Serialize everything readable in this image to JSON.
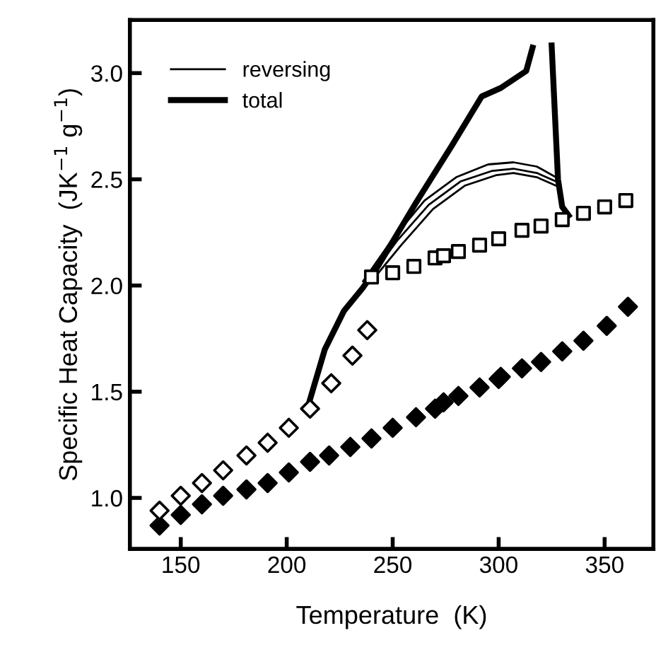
{
  "chart_data": {
    "type": "line",
    "xlabel": "Temperature  (K)",
    "ylabel": "Specific Heat Capacity  (JK$^{−1}$ g$^{−1}$)",
    "xlim": [
      126,
      373
    ],
    "ylim": [
      0.76,
      3.25
    ],
    "xticks": [
      150,
      200,
      250,
      300,
      350
    ],
    "yticks": [
      {
        "value": 1.0,
        "label": "1.0"
      },
      {
        "value": 1.5,
        "label": "1.5"
      },
      {
        "value": 2.0,
        "label": "2.0"
      },
      {
        "value": 2.5,
        "label": "2.5"
      },
      {
        "value": 3.0,
        "label": "3.0"
      }
    ],
    "legend": "top left",
    "series": [
      {
        "type": "scatter",
        "marker": "diamond",
        "color": "#000000",
        "x": [
          140,
          150,
          160,
          170,
          181,
          191,
          201,
          211,
          220,
          230,
          240,
          250,
          261,
          270,
          274,
          281,
          291,
          300,
          301,
          311,
          320,
          330,
          340,
          351,
          361
        ],
        "values": [
          0.87,
          0.92,
          0.97,
          1.01,
          1.04,
          1.07,
          1.12,
          1.17,
          1.2,
          1.24,
          1.28,
          1.33,
          1.38,
          1.42,
          1.45,
          1.48,
          1.52,
          1.56,
          1.57,
          1.61,
          1.64,
          1.69,
          1.74,
          1.81,
          1.9
        ]
      },
      {
        "type": "scatter",
        "marker": "diamond",
        "color": "#000000",
        "x": [
          140,
          150,
          160,
          170,
          181,
          191,
          201,
          211,
          221,
          231,
          238
        ],
        "values": [
          0.94,
          1.01,
          1.07,
          1.13,
          1.2,
          1.26,
          1.33,
          1.42,
          1.54,
          1.67,
          1.79
        ]
      },
      {
        "name": "reversing",
        "color": "#000000",
        "x": [
          236,
          250,
          265,
          280,
          295,
          307,
          318,
          327
        ],
        "values": [
          2.02,
          2.22,
          2.4,
          2.51,
          2.57,
          2.58,
          2.56,
          2.51
        ]
      },
      {
        "color": "#000000",
        "x": [
          238,
          252,
          267,
          282,
          297,
          307,
          318,
          327
        ],
        "values": [
          2.02,
          2.21,
          2.38,
          2.49,
          2.54,
          2.55,
          2.53,
          2.49
        ]
      },
      {
        "color": "#000000",
        "x": [
          240,
          254,
          269,
          284,
          299,
          307,
          318,
          327
        ],
        "values": [
          2.02,
          2.19,
          2.36,
          2.47,
          2.52,
          2.53,
          2.51,
          2.47
        ]
      },
      {
        "name": "total",
        "color": "#000000",
        "x": [
          210,
          218,
          227,
          236,
          243,
          261,
          278,
          292,
          301,
          307,
          313,
          316,
          320,
          325,
          328,
          330,
          333
        ],
        "values": [
          1.43,
          1.7,
          1.88,
          1.99,
          2.09,
          2.39,
          2.66,
          2.89,
          2.93,
          2.97,
          3.01,
          3.12,
          null,
          3.13,
          2.5,
          2.37,
          2.33
        ]
      },
      {
        "type": "scatter",
        "marker": "square",
        "color": "#000000",
        "x": [
          240,
          250,
          260,
          270,
          274,
          281,
          291,
          300,
          311,
          320,
          330,
          340,
          350,
          360
        ],
        "values": [
          2.04,
          2.06,
          2.09,
          2.13,
          2.14,
          2.16,
          2.19,
          2.22,
          2.26,
          2.28,
          2.31,
          2.34,
          2.37,
          2.4
        ]
      }
    ]
  }
}
